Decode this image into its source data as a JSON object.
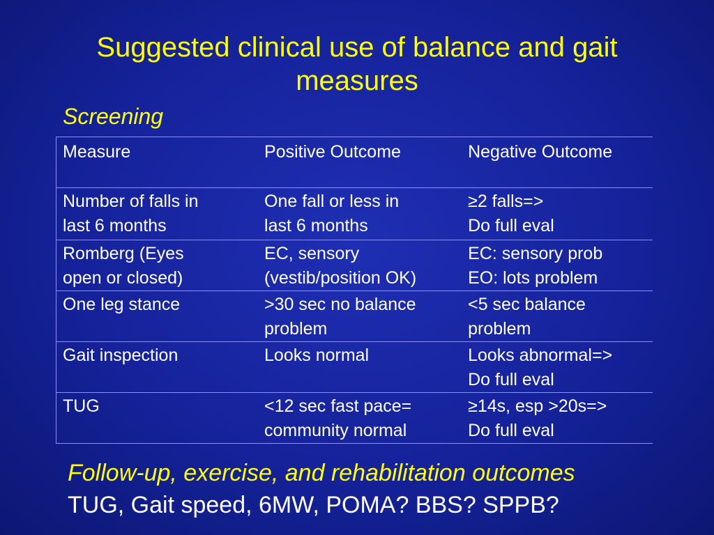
{
  "slide": {
    "title_line1": "Suggested clinical use of balance and gait",
    "title_line2": "measures",
    "subtitle": "Screening",
    "followup_heading": "Follow-up, exercise, and rehabilitation outcomes",
    "followup_measures": "TUG, Gait speed, 6MW, POMA? BBS? SPPB?",
    "colors": {
      "background": "#15229a",
      "heading": "#ffff00",
      "text": "#ffffff",
      "grid": "#8b8fff"
    }
  },
  "table": {
    "headers": [
      "Measure",
      "Positive Outcome",
      "Negative Outcome"
    ],
    "rows": [
      {
        "measure": [
          "Number of falls in",
          "last 6 months"
        ],
        "positive": [
          "One fall or less in",
          "last 6 months"
        ],
        "negative": [
          "≥2 falls=>",
          "Do full eval"
        ]
      },
      {
        "measure": [
          "Romberg (Eyes",
          "open or closed)"
        ],
        "positive": [
          "EC, sensory",
          "(vestib/position OK)"
        ],
        "negative": [
          "EC: sensory prob",
          "EO: lots problem"
        ]
      },
      {
        "measure": [
          "One leg stance",
          ""
        ],
        "positive": [
          ">30 sec no balance",
          "problem"
        ],
        "negative": [
          "<5 sec balance",
          "problem"
        ]
      },
      {
        "measure": [
          "Gait inspection",
          ""
        ],
        "positive": [
          "Looks normal",
          ""
        ],
        "negative": [
          "Looks abnormal=>",
          "Do full eval"
        ]
      },
      {
        "measure": [
          "TUG",
          ""
        ],
        "positive": [
          "<12 sec fast pace=",
          "community normal"
        ],
        "negative": [
          "≥14s, esp >20s=>",
          "Do full eval"
        ]
      }
    ]
  }
}
